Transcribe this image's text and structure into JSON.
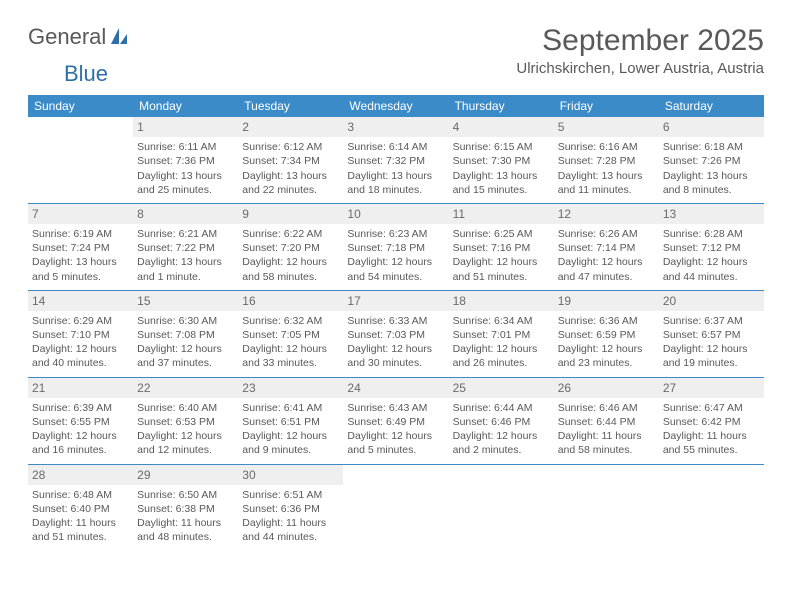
{
  "logo": {
    "word1": "General",
    "word2": "Blue"
  },
  "title": "September 2025",
  "location": "Ulrichskirchen, Lower Austria, Austria",
  "colors": {
    "header_bg": "#3b8bc8",
    "header_text": "#ffffff",
    "week_divider": "#3b8bc8",
    "daynum_bg": "#efefef",
    "text": "#595959",
    "logo_blue": "#2f6fa8"
  },
  "weekdays": [
    "Sunday",
    "Monday",
    "Tuesday",
    "Wednesday",
    "Thursday",
    "Friday",
    "Saturday"
  ],
  "weeks": [
    [
      null,
      {
        "n": "1",
        "sunrise": "Sunrise: 6:11 AM",
        "sunset": "Sunset: 7:36 PM",
        "daylight": "Daylight: 13 hours and 25 minutes."
      },
      {
        "n": "2",
        "sunrise": "Sunrise: 6:12 AM",
        "sunset": "Sunset: 7:34 PM",
        "daylight": "Daylight: 13 hours and 22 minutes."
      },
      {
        "n": "3",
        "sunrise": "Sunrise: 6:14 AM",
        "sunset": "Sunset: 7:32 PM",
        "daylight": "Daylight: 13 hours and 18 minutes."
      },
      {
        "n": "4",
        "sunrise": "Sunrise: 6:15 AM",
        "sunset": "Sunset: 7:30 PM",
        "daylight": "Daylight: 13 hours and 15 minutes."
      },
      {
        "n": "5",
        "sunrise": "Sunrise: 6:16 AM",
        "sunset": "Sunset: 7:28 PM",
        "daylight": "Daylight: 13 hours and 11 minutes."
      },
      {
        "n": "6",
        "sunrise": "Sunrise: 6:18 AM",
        "sunset": "Sunset: 7:26 PM",
        "daylight": "Daylight: 13 hours and 8 minutes."
      }
    ],
    [
      {
        "n": "7",
        "sunrise": "Sunrise: 6:19 AM",
        "sunset": "Sunset: 7:24 PM",
        "daylight": "Daylight: 13 hours and 5 minutes."
      },
      {
        "n": "8",
        "sunrise": "Sunrise: 6:21 AM",
        "sunset": "Sunset: 7:22 PM",
        "daylight": "Daylight: 13 hours and 1 minute."
      },
      {
        "n": "9",
        "sunrise": "Sunrise: 6:22 AM",
        "sunset": "Sunset: 7:20 PM",
        "daylight": "Daylight: 12 hours and 58 minutes."
      },
      {
        "n": "10",
        "sunrise": "Sunrise: 6:23 AM",
        "sunset": "Sunset: 7:18 PM",
        "daylight": "Daylight: 12 hours and 54 minutes."
      },
      {
        "n": "11",
        "sunrise": "Sunrise: 6:25 AM",
        "sunset": "Sunset: 7:16 PM",
        "daylight": "Daylight: 12 hours and 51 minutes."
      },
      {
        "n": "12",
        "sunrise": "Sunrise: 6:26 AM",
        "sunset": "Sunset: 7:14 PM",
        "daylight": "Daylight: 12 hours and 47 minutes."
      },
      {
        "n": "13",
        "sunrise": "Sunrise: 6:28 AM",
        "sunset": "Sunset: 7:12 PM",
        "daylight": "Daylight: 12 hours and 44 minutes."
      }
    ],
    [
      {
        "n": "14",
        "sunrise": "Sunrise: 6:29 AM",
        "sunset": "Sunset: 7:10 PM",
        "daylight": "Daylight: 12 hours and 40 minutes."
      },
      {
        "n": "15",
        "sunrise": "Sunrise: 6:30 AM",
        "sunset": "Sunset: 7:08 PM",
        "daylight": "Daylight: 12 hours and 37 minutes."
      },
      {
        "n": "16",
        "sunrise": "Sunrise: 6:32 AM",
        "sunset": "Sunset: 7:05 PM",
        "daylight": "Daylight: 12 hours and 33 minutes."
      },
      {
        "n": "17",
        "sunrise": "Sunrise: 6:33 AM",
        "sunset": "Sunset: 7:03 PM",
        "daylight": "Daylight: 12 hours and 30 minutes."
      },
      {
        "n": "18",
        "sunrise": "Sunrise: 6:34 AM",
        "sunset": "Sunset: 7:01 PM",
        "daylight": "Daylight: 12 hours and 26 minutes."
      },
      {
        "n": "19",
        "sunrise": "Sunrise: 6:36 AM",
        "sunset": "Sunset: 6:59 PM",
        "daylight": "Daylight: 12 hours and 23 minutes."
      },
      {
        "n": "20",
        "sunrise": "Sunrise: 6:37 AM",
        "sunset": "Sunset: 6:57 PM",
        "daylight": "Daylight: 12 hours and 19 minutes."
      }
    ],
    [
      {
        "n": "21",
        "sunrise": "Sunrise: 6:39 AM",
        "sunset": "Sunset: 6:55 PM",
        "daylight": "Daylight: 12 hours and 16 minutes."
      },
      {
        "n": "22",
        "sunrise": "Sunrise: 6:40 AM",
        "sunset": "Sunset: 6:53 PM",
        "daylight": "Daylight: 12 hours and 12 minutes."
      },
      {
        "n": "23",
        "sunrise": "Sunrise: 6:41 AM",
        "sunset": "Sunset: 6:51 PM",
        "daylight": "Daylight: 12 hours and 9 minutes."
      },
      {
        "n": "24",
        "sunrise": "Sunrise: 6:43 AM",
        "sunset": "Sunset: 6:49 PM",
        "daylight": "Daylight: 12 hours and 5 minutes."
      },
      {
        "n": "25",
        "sunrise": "Sunrise: 6:44 AM",
        "sunset": "Sunset: 6:46 PM",
        "daylight": "Daylight: 12 hours and 2 minutes."
      },
      {
        "n": "26",
        "sunrise": "Sunrise: 6:46 AM",
        "sunset": "Sunset: 6:44 PM",
        "daylight": "Daylight: 11 hours and 58 minutes."
      },
      {
        "n": "27",
        "sunrise": "Sunrise: 6:47 AM",
        "sunset": "Sunset: 6:42 PM",
        "daylight": "Daylight: 11 hours and 55 minutes."
      }
    ],
    [
      {
        "n": "28",
        "sunrise": "Sunrise: 6:48 AM",
        "sunset": "Sunset: 6:40 PM",
        "daylight": "Daylight: 11 hours and 51 minutes."
      },
      {
        "n": "29",
        "sunrise": "Sunrise: 6:50 AM",
        "sunset": "Sunset: 6:38 PM",
        "daylight": "Daylight: 11 hours and 48 minutes."
      },
      {
        "n": "30",
        "sunrise": "Sunrise: 6:51 AM",
        "sunset": "Sunset: 6:36 PM",
        "daylight": "Daylight: 11 hours and 44 minutes."
      },
      null,
      null,
      null,
      null
    ]
  ]
}
